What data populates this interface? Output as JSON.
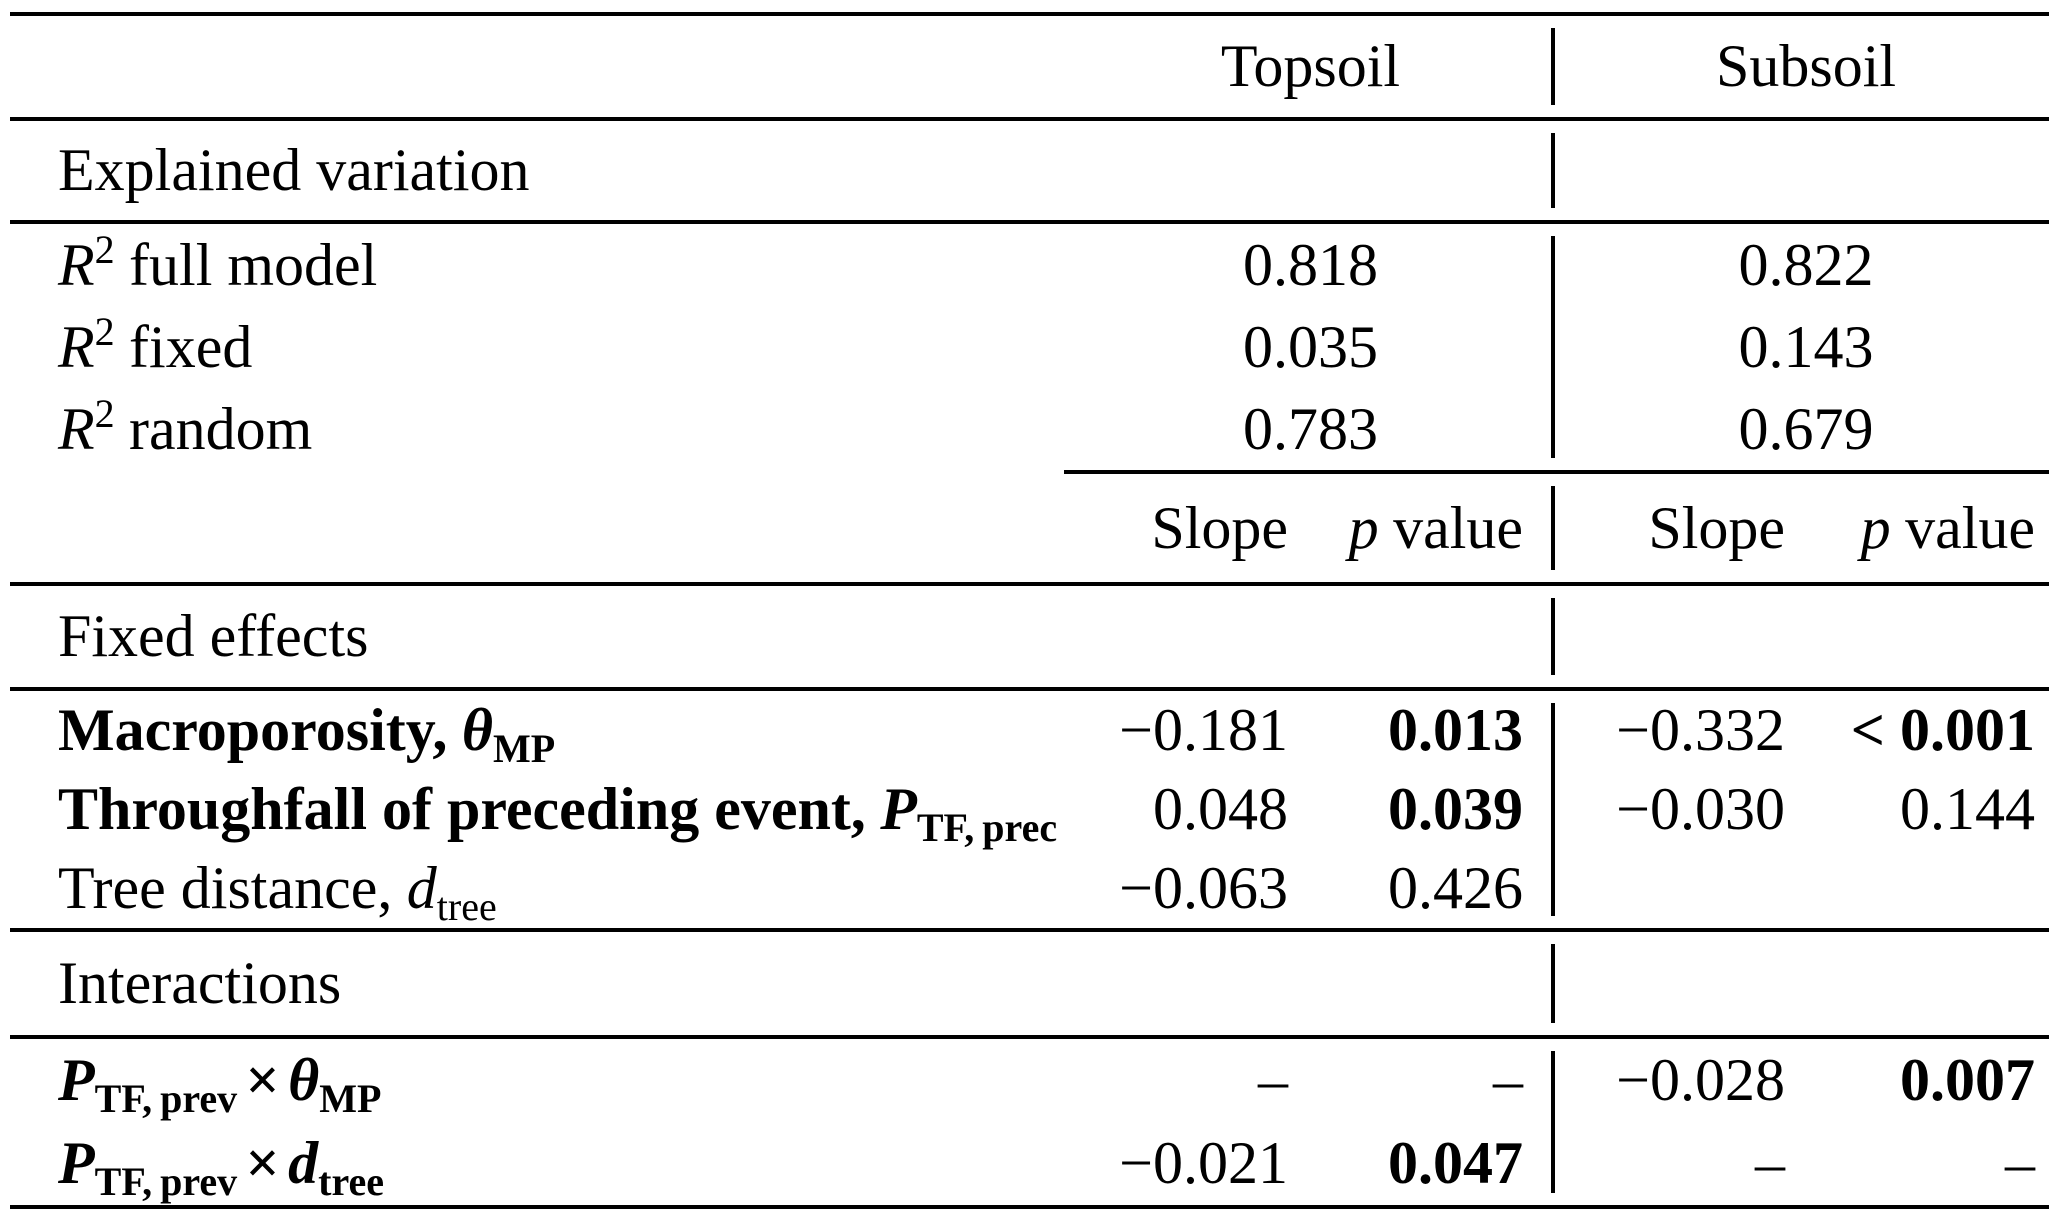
{
  "colors": {
    "background": "#ffffff",
    "text": "#000000",
    "rule": "#000000"
  },
  "header": {
    "topsoil": "Topsoil",
    "subsoil": "Subsoil"
  },
  "measure_header": {
    "slope": "Slope",
    "p": "p",
    "value": "value"
  },
  "explained": {
    "title": "Explained variation",
    "rows": [
      {
        "sym": "R",
        "sup": "2",
        "rest": "full model",
        "topsoil": "0.818",
        "subsoil": "0.822"
      },
      {
        "sym": "R",
        "sup": "2",
        "rest": "fixed",
        "topsoil": "0.035",
        "subsoil": "0.143"
      },
      {
        "sym": "R",
        "sup": "2",
        "rest": "random",
        "topsoil": "0.783",
        "subsoil": "0.679"
      }
    ]
  },
  "fixed": {
    "title": "Fixed effects",
    "rows": [
      {
        "pre": "Macroporosity,",
        "sym": "θ",
        "sub": "MP",
        "slope_topsoil": "−0.181",
        "p_topsoil": "0.013",
        "slope_subsoil": "−0.332",
        "p_subsoil": "< 0.001"
      },
      {
        "pre": "Throughfall of preceding event,",
        "sym": "P",
        "sub": "TF, prec",
        "slope_topsoil": "0.048",
        "p_topsoil": "0.039",
        "slope_subsoil": "−0.030",
        "p_subsoil": "0.144"
      },
      {
        "pre": "Tree distance,",
        "sym": "d",
        "sub": "tree",
        "slope_topsoil": "−0.063",
        "p_topsoil": "0.426",
        "slope_subsoil": "",
        "p_subsoil": ""
      }
    ]
  },
  "interactions": {
    "title": "Interactions",
    "rows": [
      {
        "sym1": "P",
        "sub1": "TF, prev",
        "op": "×",
        "sym2": "θ",
        "sub2": "MP",
        "slope_topsoil": "–",
        "p_topsoil": "–",
        "slope_subsoil": "−0.028",
        "p_subsoil": "0.007"
      },
      {
        "sym1": "P",
        "sub1": "TF, prev",
        "op": "×",
        "sym2": "d",
        "sub2": "tree",
        "slope_topsoil": "−0.021",
        "p_topsoil": "0.047",
        "slope_subsoil": "–",
        "p_subsoil": "–"
      }
    ]
  }
}
